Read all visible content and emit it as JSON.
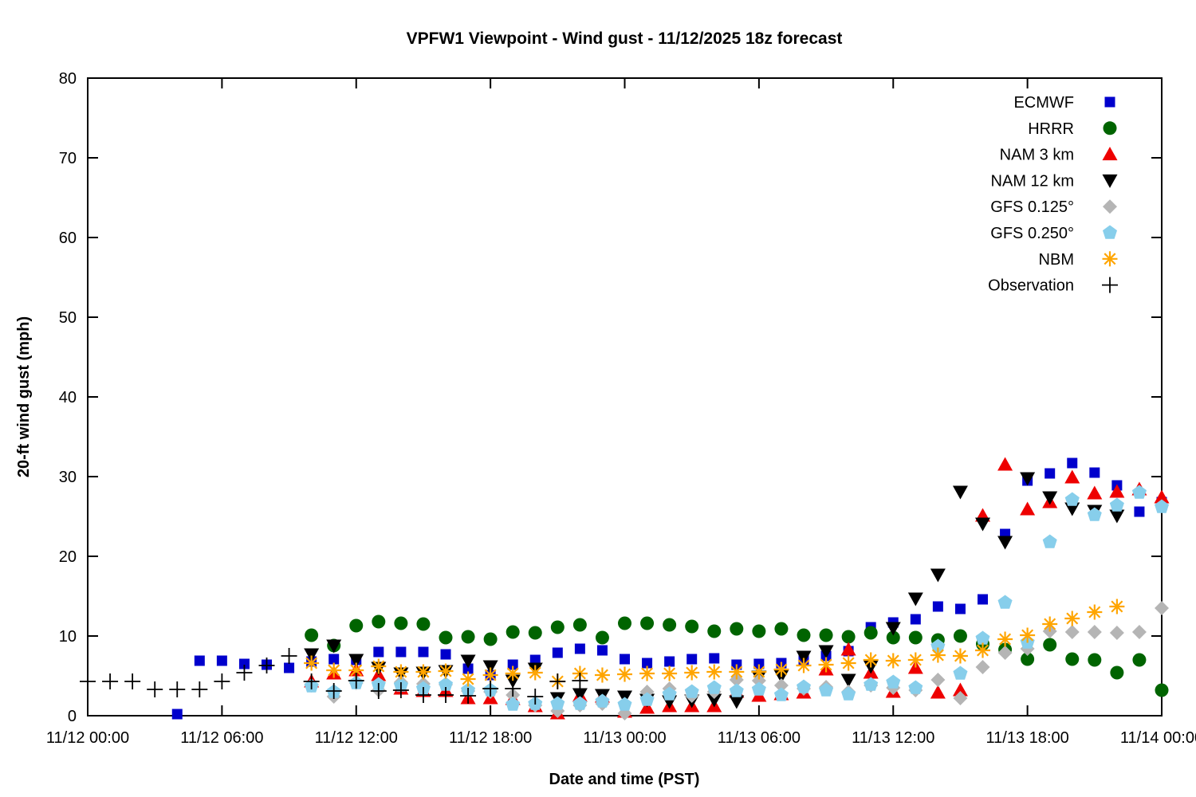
{
  "chart_data": {
    "type": "scatter",
    "title": "VPFW1 Viewpoint - Wind gust - 11/12/2025 18z forecast",
    "xlabel": "Date and time (PST)",
    "ylabel": "20-ft wind gust (mph)",
    "ylim": [
      0,
      80
    ],
    "y_ticks": [
      0,
      10,
      20,
      30,
      40,
      50,
      60,
      70,
      80
    ],
    "x_axis_note_hours_since": "11/12 00:00",
    "xlim_hours": [
      0,
      48
    ],
    "x_ticks": [
      {
        "h": 0,
        "label": "11/12 00:00"
      },
      {
        "h": 6,
        "label": "11/12 06:00"
      },
      {
        "h": 12,
        "label": "11/12 12:00"
      },
      {
        "h": 18,
        "label": "11/12 18:00"
      },
      {
        "h": 24,
        "label": "11/13 00:00"
      },
      {
        "h": 30,
        "label": "11/13 06:00"
      },
      {
        "h": 36,
        "label": "11/13 12:00"
      },
      {
        "h": 42,
        "label": "11/13 18:00"
      },
      {
        "h": 48,
        "label": "11/14 00:00"
      }
    ],
    "grid": false,
    "legend_position": "top-right-inside",
    "series": [
      {
        "name": "ECMWF",
        "marker": "square",
        "color": "#0000CC",
        "points": [
          [
            4,
            0.2
          ],
          [
            5,
            6.9
          ],
          [
            6,
            6.9
          ],
          [
            7,
            6.5
          ],
          [
            8,
            6.4
          ],
          [
            9,
            6.0
          ],
          [
            10,
            6.8
          ],
          [
            11,
            7.1
          ],
          [
            12,
            7.0
          ],
          [
            13,
            8.0
          ],
          [
            14,
            8.0
          ],
          [
            15,
            8.0
          ],
          [
            16,
            7.7
          ],
          [
            17,
            5.9
          ],
          [
            18,
            5.1
          ],
          [
            19,
            6.4
          ],
          [
            20,
            7.0
          ],
          [
            21,
            7.9
          ],
          [
            22,
            8.4
          ],
          [
            23,
            8.2
          ],
          [
            24,
            7.1
          ],
          [
            25,
            6.6
          ],
          [
            26,
            6.8
          ],
          [
            27,
            7.1
          ],
          [
            28,
            7.2
          ],
          [
            29,
            6.4
          ],
          [
            30,
            6.5
          ],
          [
            31,
            6.6
          ],
          [
            32,
            7.0
          ],
          [
            33,
            7.5
          ],
          [
            34,
            8.1
          ],
          [
            35,
            11.1
          ],
          [
            36,
            11.7
          ],
          [
            37,
            12.1
          ],
          [
            38,
            13.7
          ],
          [
            39,
            13.4
          ],
          [
            40,
            14.6
          ],
          [
            41,
            22.8
          ],
          [
            42,
            29.5
          ],
          [
            43,
            30.4
          ],
          [
            44,
            31.7
          ],
          [
            45,
            30.5
          ],
          [
            46,
            28.9
          ],
          [
            47,
            25.6
          ],
          [
            48,
            26.8
          ]
        ]
      },
      {
        "name": "HRRR",
        "marker": "circle",
        "color": "#006400",
        "points": [
          [
            10,
            10.1
          ],
          [
            11,
            8.8
          ],
          [
            12,
            11.3
          ],
          [
            13,
            11.8
          ],
          [
            14,
            11.6
          ],
          [
            15,
            11.5
          ],
          [
            16,
            9.8
          ],
          [
            17,
            9.9
          ],
          [
            18,
            9.6
          ],
          [
            19,
            10.5
          ],
          [
            20,
            10.4
          ],
          [
            21,
            11.1
          ],
          [
            22,
            11.4
          ],
          [
            23,
            9.8
          ],
          [
            24,
            11.6
          ],
          [
            25,
            11.6
          ],
          [
            26,
            11.4
          ],
          [
            27,
            11.2
          ],
          [
            28,
            10.6
          ],
          [
            29,
            10.9
          ],
          [
            30,
            10.6
          ],
          [
            31,
            10.9
          ],
          [
            32,
            10.1
          ],
          [
            33,
            10.1
          ],
          [
            34,
            9.9
          ],
          [
            35,
            10.4
          ],
          [
            36,
            9.8
          ],
          [
            37,
            9.8
          ],
          [
            38,
            9.5
          ],
          [
            39,
            10.0
          ],
          [
            40,
            9.0
          ],
          [
            41,
            8.3
          ],
          [
            42,
            7.1
          ],
          [
            43,
            8.9
          ],
          [
            44,
            7.1
          ],
          [
            45,
            7.0
          ],
          [
            46,
            5.4
          ],
          [
            47,
            7.0
          ],
          [
            48,
            3.2
          ]
        ]
      },
      {
        "name": "NAM 3 km",
        "marker": "triangle-up",
        "color": "#EE0000",
        "points": [
          [
            10,
            4.3
          ],
          [
            11,
            5.3
          ],
          [
            12,
            5.7
          ],
          [
            13,
            5.1
          ],
          [
            14,
            3.4
          ],
          [
            15,
            3.1
          ],
          [
            16,
            3.1
          ],
          [
            17,
            2.2
          ],
          [
            18,
            2.2
          ],
          [
            19,
            2.1
          ],
          [
            20,
            1.2
          ],
          [
            21,
            0.3
          ],
          [
            22,
            2.5
          ],
          [
            23,
            2.4
          ],
          [
            24,
            0.5
          ],
          [
            25,
            1.0
          ],
          [
            26,
            1.2
          ],
          [
            27,
            1.2
          ],
          [
            28,
            1.2
          ],
          [
            29,
            3.0
          ],
          [
            30,
            2.5
          ],
          [
            31,
            2.7
          ],
          [
            32,
            2.9
          ],
          [
            33,
            5.8
          ],
          [
            34,
            8.3
          ],
          [
            35,
            5.4
          ],
          [
            36,
            3.0
          ],
          [
            37,
            6.0
          ],
          [
            38,
            2.9
          ],
          [
            39,
            3.2
          ],
          [
            40,
            25.1
          ],
          [
            41,
            31.5
          ],
          [
            42,
            25.9
          ],
          [
            43,
            26.8
          ],
          [
            44,
            29.9
          ],
          [
            45,
            27.9
          ],
          [
            46,
            28.1
          ],
          [
            47,
            28.4
          ],
          [
            48,
            27.4
          ]
        ]
      },
      {
        "name": "NAM 12 km",
        "marker": "triangle-down",
        "color": "#000000",
        "points": [
          [
            10,
            7.7
          ],
          [
            11,
            8.8
          ],
          [
            12,
            7.0
          ],
          [
            13,
            6.0
          ],
          [
            14,
            5.3
          ],
          [
            15,
            5.4
          ],
          [
            16,
            5.6
          ],
          [
            17,
            6.9
          ],
          [
            18,
            6.2
          ],
          [
            19,
            4.4
          ],
          [
            20,
            5.9
          ],
          [
            21,
            2.2
          ],
          [
            22,
            2.7
          ],
          [
            23,
            2.6
          ],
          [
            24,
            2.4
          ],
          [
            25,
            2.0
          ],
          [
            26,
            1.8
          ],
          [
            27,
            1.9
          ],
          [
            28,
            2.0
          ],
          [
            29,
            1.8
          ],
          [
            30,
            4.9
          ],
          [
            31,
            5.0
          ],
          [
            32,
            7.4
          ],
          [
            33,
            8.1
          ],
          [
            34,
            4.5
          ],
          [
            35,
            6.2
          ],
          [
            36,
            11.0
          ],
          [
            37,
            14.7
          ],
          [
            38,
            17.7
          ],
          [
            39,
            28.1
          ],
          [
            40,
            24.1
          ],
          [
            41,
            21.8
          ],
          [
            42,
            29.8
          ],
          [
            43,
            27.4
          ],
          [
            44,
            26.0
          ],
          [
            45,
            25.7
          ],
          [
            46,
            25.1
          ]
        ]
      },
      {
        "name": "GFS 0.125°",
        "marker": "diamond",
        "color": "#B5B5B5",
        "points": [
          [
            10,
            3.8
          ],
          [
            11,
            2.4
          ],
          [
            12,
            4.1
          ],
          [
            13,
            3.2
          ],
          [
            14,
            4.2
          ],
          [
            15,
            4.0
          ],
          [
            16,
            3.9
          ],
          [
            17,
            3.1
          ],
          [
            18,
            3.0
          ],
          [
            19,
            2.6
          ],
          [
            20,
            1.3
          ],
          [
            21,
            0.6
          ],
          [
            22,
            1.3
          ],
          [
            23,
            1.5
          ],
          [
            24,
            0.3
          ],
          [
            25,
            3.0
          ],
          [
            26,
            3.4
          ],
          [
            27,
            2.5
          ],
          [
            28,
            3.0
          ],
          [
            29,
            4.5
          ],
          [
            30,
            4.4
          ],
          [
            31,
            3.8
          ],
          [
            32,
            3.4
          ],
          [
            33,
            3.6
          ],
          [
            34,
            3.0
          ],
          [
            35,
            3.8
          ],
          [
            36,
            3.5
          ],
          [
            37,
            3.2
          ],
          [
            38,
            4.5
          ],
          [
            39,
            2.2
          ],
          [
            40,
            6.1
          ],
          [
            41,
            7.9
          ],
          [
            42,
            8.4
          ],
          [
            43,
            10.6
          ],
          [
            44,
            10.5
          ],
          [
            45,
            10.5
          ],
          [
            46,
            10.4
          ],
          [
            47,
            10.5
          ],
          [
            48,
            13.5
          ]
        ]
      },
      {
        "name": "GFS 0.250°",
        "marker": "pentagon",
        "color": "#87CEEB",
        "points": [
          [
            10,
            3.7
          ],
          [
            11,
            3.0
          ],
          [
            12,
            4.1
          ],
          [
            13,
            3.9
          ],
          [
            14,
            3.8
          ],
          [
            15,
            3.4
          ],
          [
            16,
            3.9
          ],
          [
            17,
            3.2
          ],
          [
            18,
            3.2
          ],
          [
            19,
            1.4
          ],
          [
            20,
            1.5
          ],
          [
            21,
            1.5
          ],
          [
            22,
            1.5
          ],
          [
            23,
            1.8
          ],
          [
            24,
            1.4
          ],
          [
            25,
            2.0
          ],
          [
            26,
            2.7
          ],
          [
            27,
            3.0
          ],
          [
            28,
            3.5
          ],
          [
            29,
            3.1
          ],
          [
            30,
            3.3
          ],
          [
            31,
            2.6
          ],
          [
            32,
            3.6
          ],
          [
            33,
            3.2
          ],
          [
            34,
            2.7
          ],
          [
            35,
            3.9
          ],
          [
            36,
            4.2
          ],
          [
            37,
            3.5
          ],
          [
            38,
            8.7
          ],
          [
            39,
            5.3
          ],
          [
            40,
            9.7
          ],
          [
            41,
            14.2
          ],
          [
            42,
            9.2
          ],
          [
            43,
            21.8
          ],
          [
            44,
            27.1
          ],
          [
            45,
            25.2
          ],
          [
            46,
            26.4
          ],
          [
            47,
            28.0
          ],
          [
            48,
            26.2
          ]
        ]
      },
      {
        "name": "NBM",
        "marker": "asterisk",
        "color": "#FFA500",
        "points": [
          [
            10,
            6.6
          ],
          [
            11,
            5.7
          ],
          [
            12,
            5.7
          ],
          [
            13,
            6.2
          ],
          [
            14,
            5.5
          ],
          [
            15,
            5.5
          ],
          [
            16,
            5.6
          ],
          [
            17,
            4.6
          ],
          [
            18,
            5.1
          ],
          [
            19,
            5.3
          ],
          [
            20,
            5.4
          ],
          [
            21,
            4.3
          ],
          [
            22,
            5.3
          ],
          [
            23,
            5.1
          ],
          [
            24,
            5.2
          ],
          [
            25,
            5.3
          ],
          [
            26,
            5.3
          ],
          [
            27,
            5.4
          ],
          [
            28,
            5.5
          ],
          [
            29,
            5.5
          ],
          [
            30,
            5.5
          ],
          [
            31,
            5.8
          ],
          [
            32,
            6.3
          ],
          [
            33,
            6.4
          ],
          [
            34,
            6.6
          ],
          [
            35,
            7.0
          ],
          [
            36,
            6.9
          ],
          [
            37,
            7.0
          ],
          [
            38,
            7.6
          ],
          [
            39,
            7.5
          ],
          [
            40,
            8.2
          ],
          [
            41,
            9.6
          ],
          [
            42,
            10.1
          ],
          [
            43,
            11.5
          ],
          [
            44,
            12.2
          ],
          [
            45,
            13.0
          ],
          [
            46,
            13.7
          ]
        ]
      },
      {
        "name": "Observation",
        "marker": "plus",
        "color": "#000000",
        "points": [
          [
            0,
            4.3
          ],
          [
            1,
            4.3
          ],
          [
            2,
            4.3
          ],
          [
            3,
            3.3
          ],
          [
            4,
            3.3
          ],
          [
            5,
            3.3
          ],
          [
            6,
            4.3
          ],
          [
            7,
            5.4
          ],
          [
            8,
            6.3
          ],
          [
            9,
            7.5
          ],
          [
            10,
            4.3
          ],
          [
            11,
            3.1
          ],
          [
            12,
            4.4
          ],
          [
            13,
            3.1
          ],
          [
            14,
            3.2
          ],
          [
            15,
            2.6
          ],
          [
            16,
            2.6
          ],
          [
            17,
            2.5
          ],
          [
            18,
            3.4
          ],
          [
            19,
            3.4
          ],
          [
            20,
            2.4
          ],
          [
            21,
            4.3
          ],
          [
            22,
            4.4
          ]
        ]
      }
    ]
  }
}
